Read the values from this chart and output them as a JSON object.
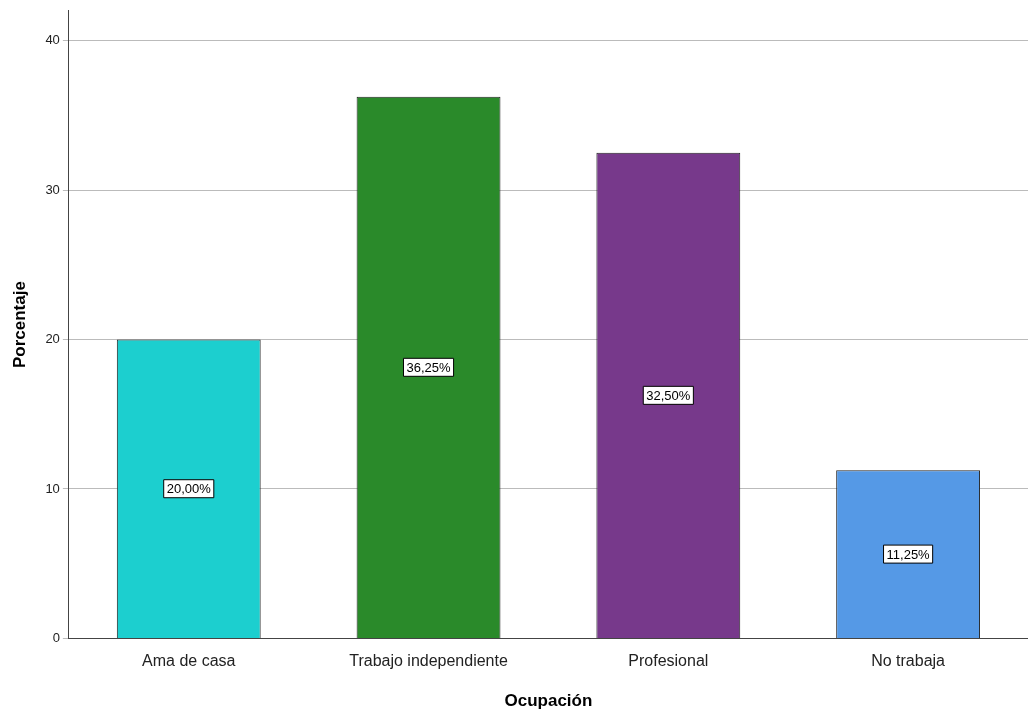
{
  "chart_data": {
    "type": "bar",
    "xlabel": "Ocupación",
    "ylabel": "Porcentaje",
    "categories": [
      "Ama de casa",
      "Trabajo independiente",
      "Profesional",
      "No trabaja"
    ],
    "values": [
      20,
      36.25,
      32.5,
      11.25
    ],
    "colors": [
      "#1ccfcf",
      "#2a8a2a",
      "#77398b",
      "#5599e6"
    ],
    "value_labels": [
      "20,00%",
      "36,25%",
      "32,50%",
      "11,25%"
    ],
    "ylim": [
      0,
      42
    ],
    "yticks": [
      0,
      10,
      20,
      30,
      40
    ],
    "grid": "y",
    "legend": false
  }
}
